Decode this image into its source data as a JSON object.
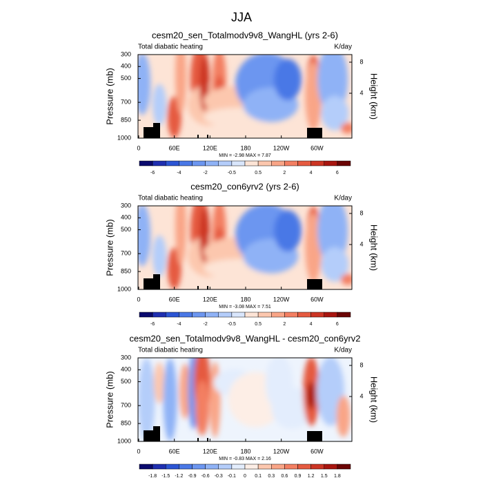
{
  "title": "JJA",
  "panels": [
    {
      "title": "cesm20_sen_Totalmodv9v8_WangHL (yrs 2-6)",
      "left_label": "Total diabatic heating",
      "right_label": "K/day",
      "y_label": "Pressure (mb)",
      "y2_label": "Height (km)",
      "yticks": [
        "300",
        "400",
        "500",
        "700",
        "850",
        "1000"
      ],
      "y2ticks": [
        "8",
        "4"
      ],
      "xticks": [
        "0",
        "60E",
        "120E",
        "180",
        "120W",
        "60W"
      ],
      "minmax": "MIN = -2.98   MAX =  7.87",
      "colorbar_labels": [
        "-6",
        "-4",
        "-2",
        "-0.5",
        "0.5",
        "2",
        "4",
        "6"
      ]
    },
    {
      "title": "cesm20_con6yrv2 (yrs 2-6)",
      "left_label": "Total diabatic heating",
      "right_label": "K/day",
      "y_label": "Pressure (mb)",
      "y2_label": "Height (km)",
      "yticks": [
        "300",
        "400",
        "500",
        "700",
        "850",
        "1000"
      ],
      "y2ticks": [
        "8",
        "4"
      ],
      "xticks": [
        "0",
        "60E",
        "120E",
        "180",
        "120W",
        "60W"
      ],
      "minmax": "MIN = -3.08   MAX =  7.51",
      "colorbar_labels": [
        "-6",
        "-4",
        "-2",
        "-0.5",
        "0.5",
        "2",
        "4",
        "6"
      ]
    },
    {
      "title": "cesm20_sen_Totalmodv9v8_WangHL - cesm20_con6yrv2",
      "left_label": "Total diabatic heating",
      "right_label": "K/day",
      "y_label": "Pressure (mb)",
      "y2_label": "Height (km)",
      "yticks": [
        "300",
        "400",
        "500",
        "700",
        "850",
        "1000"
      ],
      "y2ticks": [
        "8",
        "4"
      ],
      "xticks": [
        "0",
        "60E",
        "120E",
        "180",
        "120W",
        "60W"
      ],
      "minmax": "MIN = -0.83   MAX =  2.16",
      "colorbar_labels": [
        "-1.8",
        "-1.5",
        "-1.2",
        "-0.9",
        "-0.6",
        "-0.3",
        "-0.1",
        "0",
        "0.1",
        "0.3",
        "0.6",
        "0.9",
        "1.2",
        "1.5",
        "1.8"
      ]
    }
  ]
}
